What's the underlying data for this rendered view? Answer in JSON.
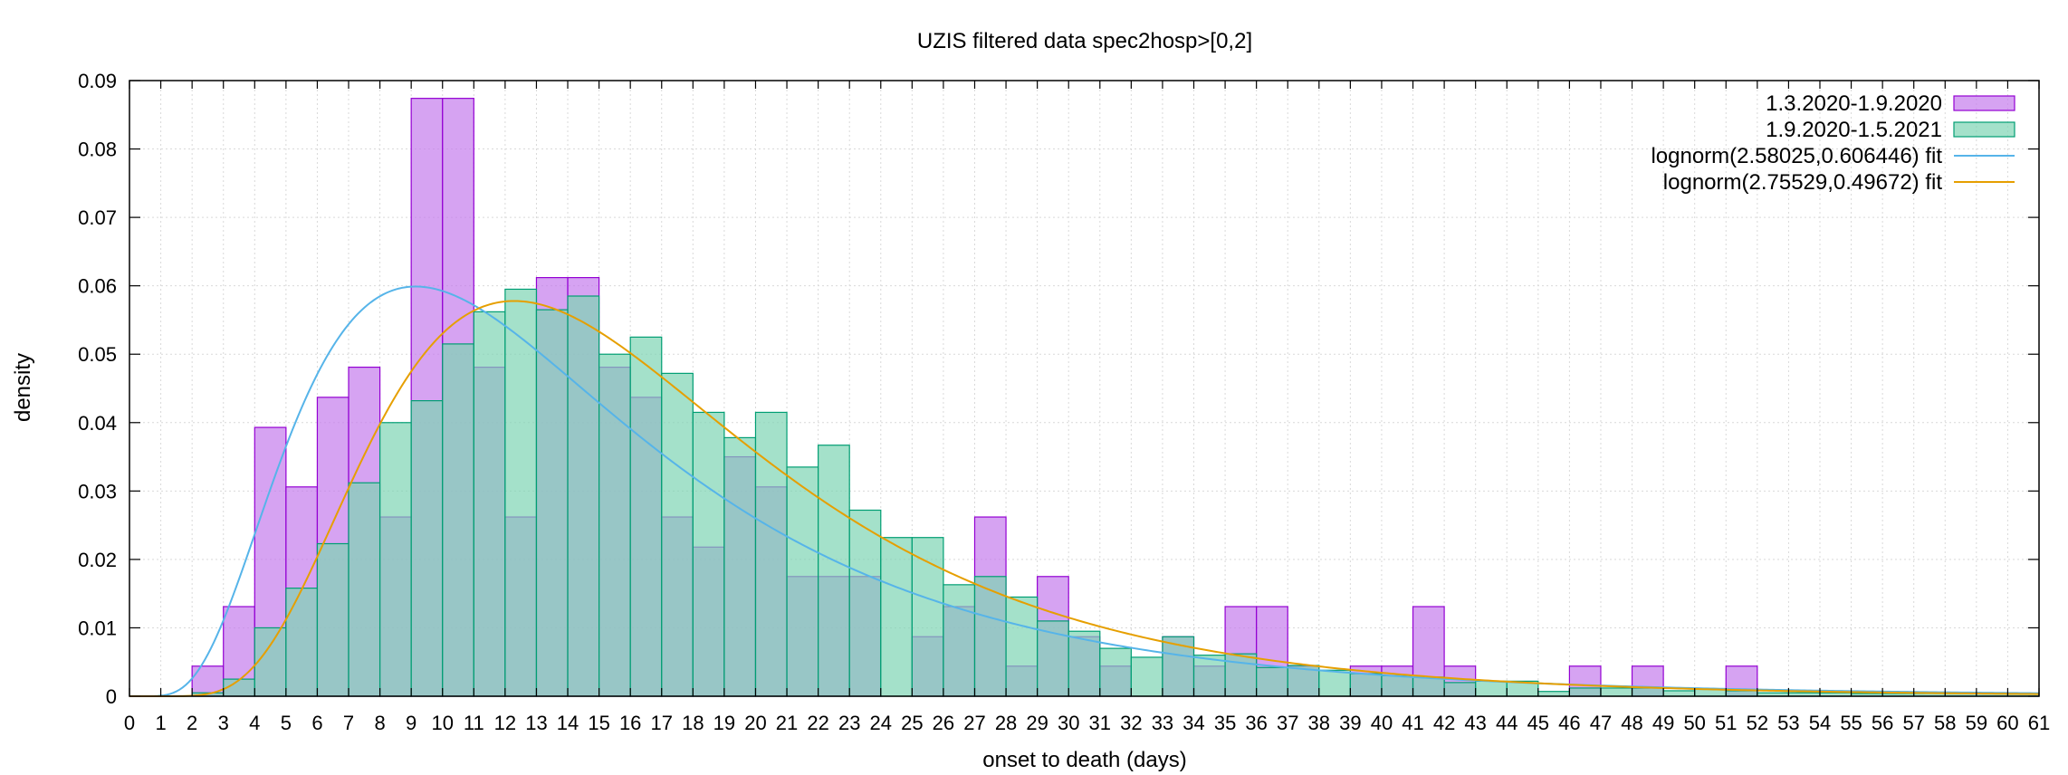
{
  "chart_data": {
    "type": "bar",
    "title": "UZIS filtered data spec2hosp>[0,2]",
    "xlabel": "onset to death (days)",
    "ylabel": "density",
    "xlim": [
      0,
      61
    ],
    "ylim": [
      0,
      0.09
    ],
    "x_ticks": [
      0,
      1,
      2,
      3,
      4,
      5,
      6,
      7,
      8,
      9,
      10,
      11,
      12,
      13,
      14,
      15,
      16,
      17,
      18,
      19,
      20,
      21,
      22,
      23,
      24,
      25,
      26,
      27,
      28,
      29,
      30,
      31,
      32,
      33,
      34,
      35,
      36,
      37,
      38,
      39,
      40,
      41,
      42,
      43,
      44,
      45,
      46,
      47,
      48,
      49,
      50,
      51,
      52,
      53,
      54,
      55,
      56,
      57,
      58,
      59,
      60,
      61
    ],
    "y_ticks": [
      0,
      0.01,
      0.02,
      0.03,
      0.04,
      0.05,
      0.06,
      0.07,
      0.08,
      0.09
    ],
    "y_tick_labels": [
      "0",
      "0.01",
      "0.02",
      "0.03",
      "0.04",
      "0.05",
      "0.06",
      "0.07",
      "0.08",
      "0.09"
    ],
    "grid": true,
    "legend_position": "top-right",
    "series": [
      {
        "name": "1.3.2020-1.9.2020",
        "kind": "histogram",
        "color": "#c57ced",
        "edge": "#9400d3",
        "bin_start": 0,
        "bin_width": 1,
        "values": [
          0,
          0,
          0.0044,
          0.0131,
          0.0393,
          0.0306,
          0.0437,
          0.0481,
          0.0262,
          0.0874,
          0.0874,
          0.0481,
          0.0262,
          0.0612,
          0.0612,
          0.0481,
          0.0437,
          0.0262,
          0.0218,
          0.035,
          0.0306,
          0.0175,
          0.0175,
          0.0175,
          0,
          0.0087,
          0.0131,
          0.0262,
          0.0044,
          0.0175,
          0.0087,
          0.0044,
          0,
          0.0087,
          0.0044,
          0.0131,
          0.0131,
          0.0044,
          0,
          0.0044,
          0.0044,
          0.0131,
          0.0044,
          0,
          0,
          0,
          0.0044,
          0,
          0.0044,
          0,
          0,
          0.0044,
          0,
          0,
          0,
          0,
          0,
          0,
          0,
          0,
          0
        ]
      },
      {
        "name": "1.9.2020-1.5.2021",
        "kind": "histogram",
        "color": "#7ed4b3",
        "edge": "#009e73",
        "bin_start": 0,
        "bin_width": 1,
        "values": [
          0,
          0,
          0.0005,
          0.0025,
          0.01,
          0.0158,
          0.0223,
          0.0312,
          0.04,
          0.0432,
          0.0515,
          0.0562,
          0.0595,
          0.0565,
          0.0585,
          0.05,
          0.0525,
          0.0472,
          0.0415,
          0.0378,
          0.0415,
          0.0335,
          0.0367,
          0.0272,
          0.0232,
          0.0232,
          0.0163,
          0.0175,
          0.0145,
          0.011,
          0.0095,
          0.007,
          0.0057,
          0.0087,
          0.006,
          0.0062,
          0.0042,
          0.0045,
          0.0038,
          0.0033,
          0.003,
          0.0028,
          0.002,
          0.0022,
          0.0022,
          0.0007,
          0.0012,
          0.0012,
          0.0012,
          0.0008,
          0.001,
          0.0008,
          0.0005,
          0.0005,
          0.0005,
          0.0004,
          0.0004,
          0.0004,
          0.0004,
          0.0004,
          0.0004
        ]
      },
      {
        "name": "lognorm(2.58025,0.606446) fit",
        "kind": "lognormal",
        "mu": 2.58025,
        "sigma": 0.606446,
        "color": "#56b4e9"
      },
      {
        "name": "lognorm(2.75529,0.49672) fit",
        "kind": "lognormal",
        "mu": 2.75529,
        "sigma": 0.49672,
        "color": "#e69f00"
      }
    ]
  }
}
